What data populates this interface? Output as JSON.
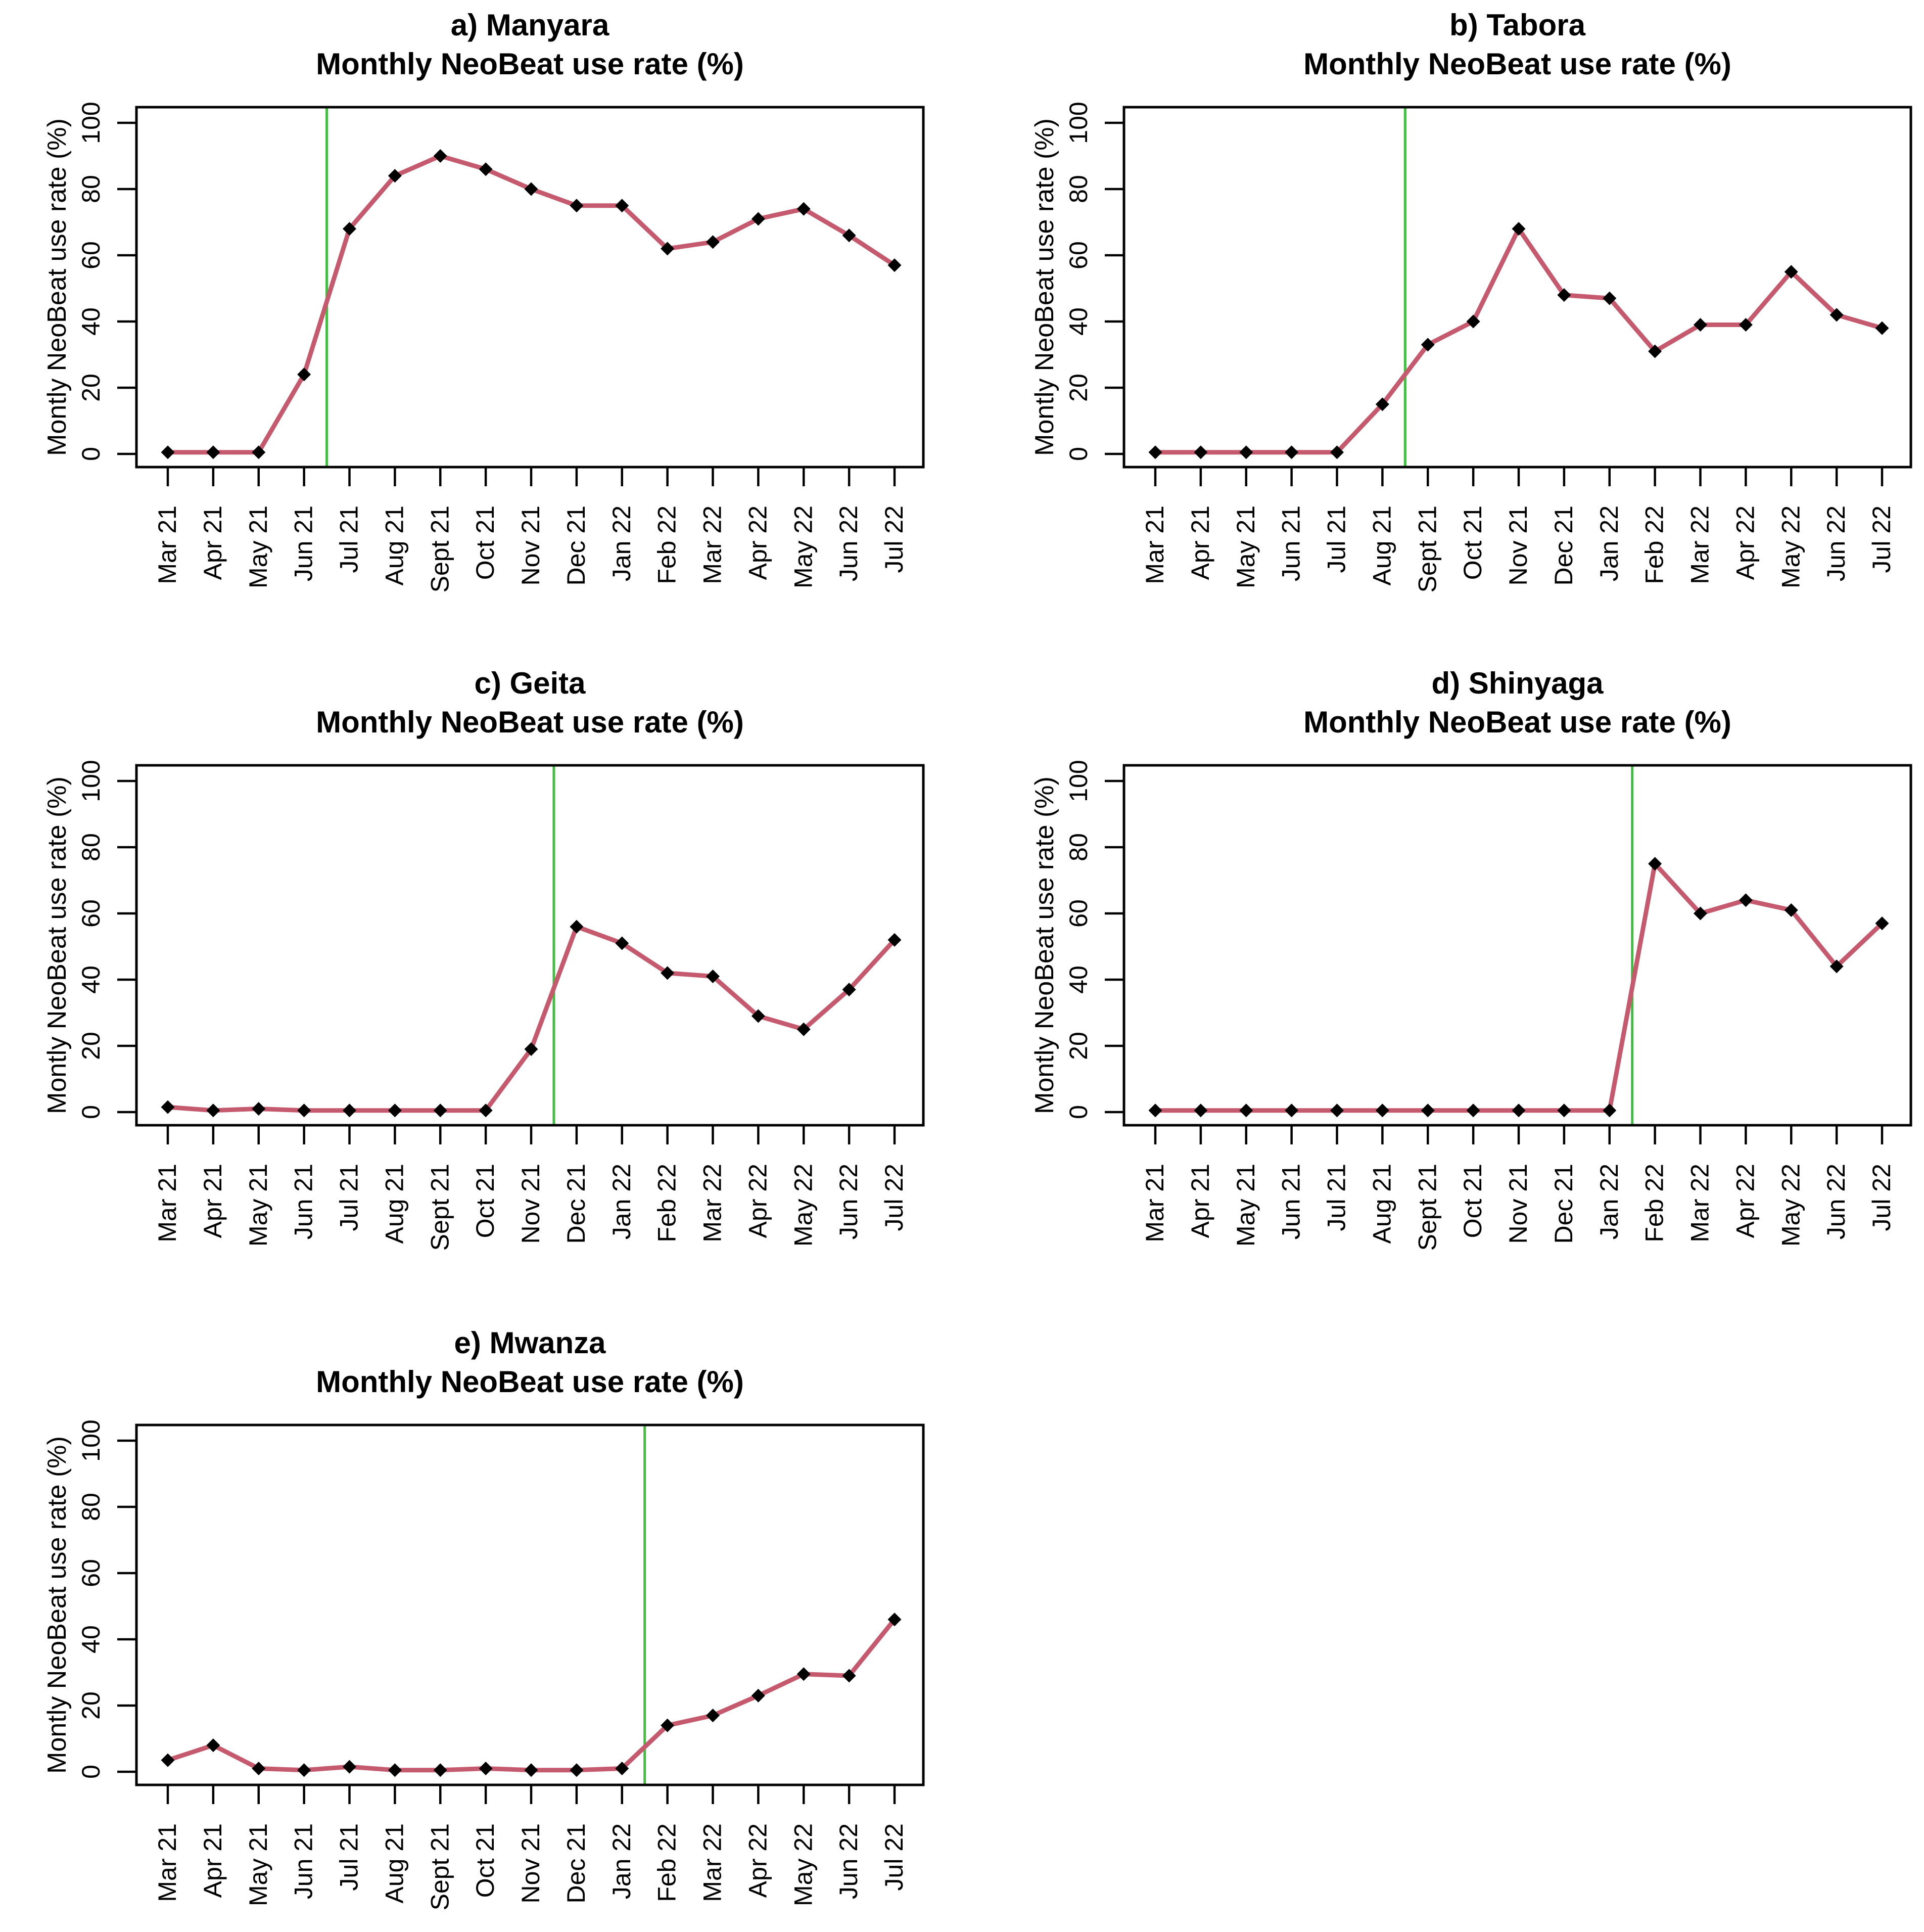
{
  "figure": {
    "description": "Five R-style line charts of monthly NeoBeat use rate by region",
    "y_axis_label": "Montly NeoBeat use rate (%)",
    "colors": {
      "series_line": "#C55A6E",
      "marker": "#000000",
      "vline": "#3FBE3F",
      "axis": "#000000",
      "title_text": "#000000",
      "background": "#FFFFFF"
    },
    "marker_shape": "diamond",
    "grid": false,
    "legend": "none"
  },
  "chart_data": [
    {
      "type": "line",
      "id": "manyara",
      "title": "a) Manyara",
      "subtitle": "Monthly NeoBeat use rate (%)",
      "xlabel": "",
      "ylabel": "Montly NeoBeat use rate (%)",
      "ylim": [
        0,
        100
      ],
      "yticks": [
        0,
        20,
        40,
        60,
        80,
        100
      ],
      "categories": [
        "Mar 21",
        "Apr 21",
        "May 21",
        "Jun 21",
        "Jul 21",
        "Aug 21",
        "Sept 21",
        "Oct 21",
        "Nov 21",
        "Dec 21",
        "Jan 22",
        "Feb 22",
        "Mar 22",
        "Apr 22",
        "May 22",
        "Jun 22",
        "Jul 22"
      ],
      "values": [
        0.5,
        0.5,
        0.5,
        24,
        68,
        84,
        90,
        86,
        80,
        75,
        75,
        62,
        64,
        71,
        74,
        66,
        57
      ],
      "vline_month_index": 3.5
    },
    {
      "type": "line",
      "id": "tabora",
      "title": "b) Tabora",
      "subtitle": "Monthly NeoBeat use rate (%)",
      "xlabel": "",
      "ylabel": "Montly NeoBeat use rate (%)",
      "ylim": [
        0,
        100
      ],
      "yticks": [
        0,
        20,
        40,
        60,
        80,
        100
      ],
      "categories": [
        "Mar 21",
        "Apr 21",
        "May 21",
        "Jun 21",
        "Jul 21",
        "Aug 21",
        "Sept 21",
        "Oct 21",
        "Nov 21",
        "Dec 21",
        "Jan 22",
        "Feb 22",
        "Mar 22",
        "Apr 22",
        "May 22",
        "Jun 22",
        "Jul 22"
      ],
      "values": [
        0.5,
        0.5,
        0.5,
        0.5,
        0.5,
        15,
        33,
        40,
        68,
        48,
        47,
        31,
        39,
        39,
        55,
        42,
        38
      ],
      "vline_month_index": 5.5
    },
    {
      "type": "line",
      "id": "geita",
      "title": "c) Geita",
      "subtitle": "Monthly NeoBeat use rate (%)",
      "xlabel": "",
      "ylabel": "Montly NeoBeat use rate (%)",
      "ylim": [
        0,
        100
      ],
      "yticks": [
        0,
        20,
        40,
        60,
        80,
        100
      ],
      "categories": [
        "Mar 21",
        "Apr 21",
        "May 21",
        "Jun 21",
        "Jul 21",
        "Aug 21",
        "Sept 21",
        "Oct 21",
        "Nov 21",
        "Dec 21",
        "Jan 22",
        "Feb 22",
        "Mar 22",
        "Apr 22",
        "May 22",
        "Jun 22",
        "Jul 22"
      ],
      "values": [
        1.5,
        0.5,
        1,
        0.5,
        0.5,
        0.5,
        0.5,
        0.5,
        19,
        56,
        51,
        42,
        41,
        29,
        25,
        37,
        52
      ],
      "vline_month_index": 8.5
    },
    {
      "type": "line",
      "id": "shinyaga",
      "title": "d) Shinyaga",
      "subtitle": "Monthly NeoBeat use rate (%)",
      "xlabel": "",
      "ylabel": "Montly NeoBeat use rate (%)",
      "ylim": [
        0,
        100
      ],
      "yticks": [
        0,
        20,
        40,
        60,
        80,
        100
      ],
      "categories": [
        "Mar 21",
        "Apr 21",
        "May 21",
        "Jun 21",
        "Jul 21",
        "Aug 21",
        "Sept 21",
        "Oct 21",
        "Nov 21",
        "Dec 21",
        "Jan 22",
        "Feb 22",
        "Mar 22",
        "Apr 22",
        "May 22",
        "Jun 22",
        "Jul 22"
      ],
      "values": [
        0.5,
        0.5,
        0.5,
        0.5,
        0.5,
        0.5,
        0.5,
        0.5,
        0.5,
        0.5,
        0.5,
        75,
        60,
        64,
        61,
        44,
        57
      ],
      "vline_month_index": 10.5
    },
    {
      "type": "line",
      "id": "mwanza",
      "title": "e) Mwanza",
      "subtitle": "Monthly NeoBeat use rate (%)",
      "xlabel": "",
      "ylabel": "Montly NeoBeat use rate (%)",
      "ylim": [
        0,
        100
      ],
      "yticks": [
        0,
        20,
        40,
        60,
        80,
        100
      ],
      "categories": [
        "Mar 21",
        "Apr 21",
        "May 21",
        "Jun 21",
        "Jul 21",
        "Aug 21",
        "Sept 21",
        "Oct 21",
        "Nov 21",
        "Dec 21",
        "Jan 22",
        "Feb 22",
        "Mar 22",
        "Apr 22",
        "May 22",
        "Jun 22",
        "Jul 22"
      ],
      "values": [
        3.5,
        8,
        1,
        0.5,
        1.5,
        0.5,
        0.5,
        1,
        0.5,
        0.5,
        1,
        14,
        17,
        23,
        29.5,
        29,
        46
      ],
      "vline_month_index": 10.5
    }
  ]
}
